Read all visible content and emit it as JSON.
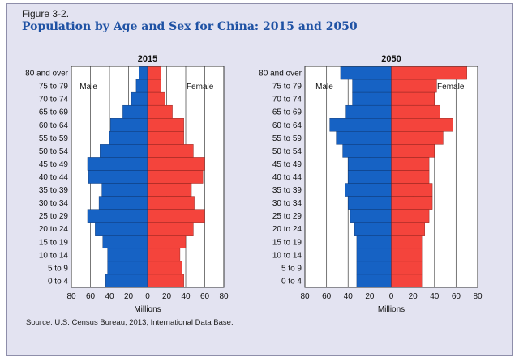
{
  "figure": {
    "label": "Figure 3-2.",
    "title": "Population by Age and Sex for China: 2015 and 2050",
    "source": "Source: U.S. Census Bureau, 2013; International Data Base."
  },
  "colors": {
    "male": "#1662c4",
    "female": "#f4443c",
    "background": "#e3e3f1",
    "plot_bg": "#ffffff",
    "title": "#1f52a4"
  },
  "chart_data": [
    {
      "type": "bar",
      "orientation": "horizontal-pyramid",
      "title": "2015",
      "xlabel": "Millions",
      "xlim": [
        -80,
        80
      ],
      "xticks": [
        "80",
        "60",
        "40",
        "20",
        "0",
        "20",
        "40",
        "60",
        "80"
      ],
      "male_label": "Male",
      "female_label": "Female",
      "categories": [
        "80 and over",
        "75 to 79",
        "70 to 74",
        "65 to 69",
        "60 to 64",
        "55 to 59",
        "50 to 54",
        "45 to 49",
        "40 to 44",
        "35 to 39",
        "30 to 34",
        "25 to 29",
        "20 to 24",
        "15 to 19",
        "10 to 14",
        "5 to 9",
        "0 to 4"
      ],
      "series": [
        {
          "name": "Male",
          "values": [
            9,
            12,
            17,
            26,
            39,
            40,
            50,
            63,
            62,
            48,
            51,
            63,
            55,
            47,
            42,
            42,
            44
          ]
        },
        {
          "name": "Female",
          "values": [
            14,
            14,
            18,
            26,
            38,
            38,
            48,
            60,
            58,
            46,
            49,
            60,
            48,
            40,
            34,
            36,
            38
          ]
        }
      ]
    },
    {
      "type": "bar",
      "orientation": "horizontal-pyramid",
      "title": "2050",
      "xlabel": "Millions",
      "xlim": [
        -80,
        80
      ],
      "xticks": [
        "80",
        "60",
        "40",
        "20",
        "0",
        "20",
        "40",
        "60",
        "80"
      ],
      "male_label": "Male",
      "female_label": "Female",
      "categories": [
        "80 and over",
        "75 to 79",
        "70 to 74",
        "65 to 69",
        "60 to 64",
        "55 to 59",
        "50 to 54",
        "45 to 49",
        "40 to 44",
        "35 to 39",
        "30 to 34",
        "25 to 29",
        "20 to 24",
        "15 to 19",
        "10 to 14",
        "5 to 9",
        "0 to 4"
      ],
      "series": [
        {
          "name": "Male",
          "values": [
            47,
            36,
            36,
            42,
            57,
            51,
            45,
            40,
            40,
            43,
            40,
            38,
            34,
            32,
            32,
            32,
            32
          ]
        },
        {
          "name": "Female",
          "values": [
            70,
            42,
            40,
            45,
            57,
            48,
            40,
            35,
            35,
            38,
            38,
            35,
            31,
            29,
            29,
            29,
            29
          ]
        }
      ]
    }
  ]
}
